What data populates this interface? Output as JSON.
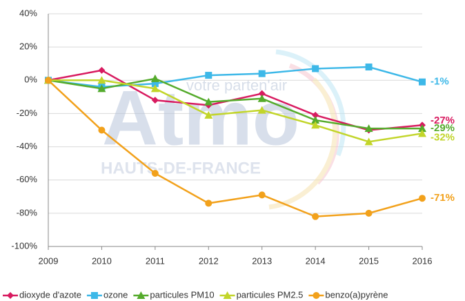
{
  "chart_data": {
    "type": "line",
    "watermark": {
      "brand": "Atmo",
      "region": "HAUTS-DE-FRANCE",
      "tagline": "votre parten'air"
    },
    "categories": [
      "2009",
      "2010",
      "2011",
      "2012",
      "2013",
      "2014",
      "2015",
      "2016"
    ],
    "ylim": [
      -100,
      40
    ],
    "yticks": [
      {
        "value": -100,
        "label": "-100%"
      },
      {
        "value": -80,
        "label": "-80%"
      },
      {
        "value": -60,
        "label": "-60%"
      },
      {
        "value": -40,
        "label": "-40%"
      },
      {
        "value": -20,
        "label": "-20%"
      },
      {
        "value": 0,
        "label": "0%"
      },
      {
        "value": 20,
        "label": "20%"
      },
      {
        "value": 40,
        "label": "40%"
      }
    ],
    "grid": true,
    "legend": "bottom",
    "series": [
      {
        "name": "dioxyde d'azote",
        "color": "#d81b60",
        "marker": "diamond",
        "values": [
          0,
          6,
          -12,
          -15,
          -8,
          -21,
          -30,
          -27
        ],
        "value_labels": [
          null,
          null,
          null,
          null,
          null,
          null,
          null,
          "-27%"
        ]
      },
      {
        "name": "ozone",
        "color": "#3db8e8",
        "marker": "square",
        "values": [
          0,
          -4,
          -2,
          3,
          4,
          7,
          8,
          -1
        ],
        "value_labels": [
          null,
          null,
          null,
          null,
          null,
          null,
          null,
          "-1%"
        ]
      },
      {
        "name": "particules PM10",
        "color": "#55ab2c",
        "marker": "triangle",
        "values": [
          0,
          -5,
          1,
          -13,
          -11,
          -24,
          -29,
          -29
        ],
        "value_labels": [
          null,
          null,
          null,
          null,
          null,
          null,
          null,
          "-29%"
        ]
      },
      {
        "name": "particules PM2.5",
        "color": "#c2d52a",
        "marker": "triangle",
        "values": [
          0,
          0,
          -5,
          -21,
          -18,
          -27,
          -37,
          -32
        ],
        "value_labels": [
          null,
          null,
          null,
          null,
          null,
          null,
          null,
          "-32%"
        ]
      },
      {
        "name": "benzo(a)pyrène",
        "color": "#f2a11b",
        "marker": "circle",
        "values": [
          0,
          -30,
          -56,
          -74,
          -69,
          -82,
          -80,
          -71
        ],
        "value_labels": [
          null,
          null,
          null,
          null,
          null,
          null,
          null,
          "-71%"
        ]
      }
    ]
  }
}
